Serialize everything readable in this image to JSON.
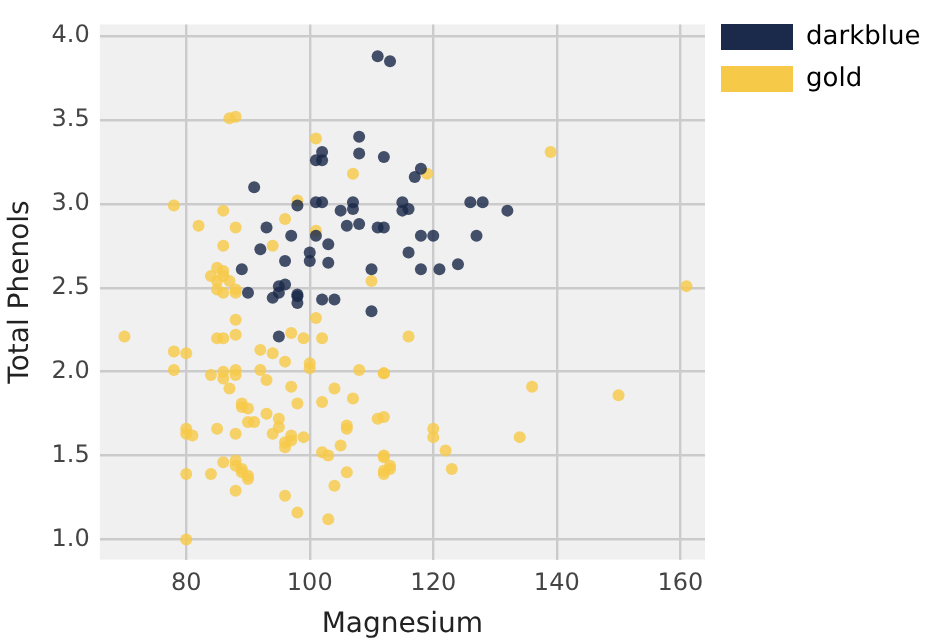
{
  "chart_data": {
    "type": "scatter",
    "xlabel": "Magnesium",
    "ylabel": "Total Phenols",
    "xlim": [
      66,
      164
    ],
    "ylim": [
      0.88,
      4.07
    ],
    "xticks": [
      80,
      100,
      120,
      140,
      160
    ],
    "yticks": [
      {
        "value": 1,
        "label": "1.0"
      },
      1.5,
      {
        "value": 2,
        "label": "2.0"
      },
      2.5,
      {
        "value": 3,
        "label": "3.0"
      },
      3.5,
      {
        "value": 4,
        "label": "4.0"
      }
    ],
    "grid": true,
    "legend": "top right",
    "marker": "circle",
    "series": [
      {
        "name": "darkblue",
        "color": "#1b2a4a",
        "x": [
          111,
          113,
          108,
          108,
          112,
          102,
          101,
          102,
          91,
          98,
          101,
          102,
          107,
          107,
          105,
          93,
          106,
          108,
          111,
          112,
          97,
          101,
          92,
          96,
          103,
          100,
          100,
          103,
          89,
          110,
          96,
          95,
          94,
          90,
          98,
          98,
          102,
          104,
          110,
          118,
          117,
          115,
          116,
          115,
          126,
          128,
          132,
          118,
          120,
          127,
          116,
          118,
          121,
          124,
          95,
          95,
          98
        ],
        "values": [
          3.88,
          3.85,
          3.4,
          3.3,
          3.28,
          3.31,
          3.26,
          3.26,
          3.1,
          2.99,
          3.01,
          3.01,
          3.01,
          2.97,
          2.96,
          2.86,
          2.87,
          2.88,
          2.86,
          2.86,
          2.81,
          2.81,
          2.73,
          2.66,
          2.76,
          2.71,
          2.66,
          2.65,
          2.61,
          2.61,
          2.52,
          2.51,
          2.44,
          2.47,
          2.45,
          2.41,
          2.43,
          2.43,
          2.36,
          3.21,
          3.16,
          3.01,
          2.97,
          2.96,
          3.01,
          3.01,
          2.96,
          2.81,
          2.81,
          2.81,
          2.71,
          2.61,
          2.61,
          2.64,
          2.21,
          2.47,
          2.46
        ]
      },
      {
        "name": "gold",
        "color": "#f7c948",
        "x": [
          87,
          88,
          101,
          107,
          78,
          86,
          82,
          88,
          96,
          98,
          86,
          94,
          85,
          86,
          84,
          86,
          85,
          87,
          85,
          86,
          88,
          110,
          101,
          139,
          119,
          161,
          70,
          78,
          80,
          78,
          85,
          86,
          88,
          88,
          88,
          92,
          94,
          97,
          99,
          102,
          101,
          96,
          100,
          100,
          84,
          86,
          88,
          86,
          87,
          88,
          92,
          93,
          97,
          108,
          112,
          104,
          102,
          107,
          89,
          89,
          90,
          93,
          95,
          98,
          90,
          91,
          80,
          80,
          81,
          85,
          88,
          94,
          97,
          95,
          106,
          106,
          96,
          96,
          97,
          99,
          102,
          103,
          105,
          86,
          88,
          88,
          89,
          90,
          88,
          84,
          80,
          89,
          90,
          96,
          98,
          106,
          104,
          103,
          112,
          112,
          113,
          80,
          116,
          112,
          111,
          112,
          120,
          120,
          122,
          123,
          112,
          112,
          113,
          134,
          136,
          150
        ],
        "values": [
          3.51,
          3.52,
          3.39,
          3.18,
          2.99,
          2.96,
          2.87,
          2.86,
          2.91,
          3.02,
          2.75,
          2.75,
          2.62,
          2.6,
          2.57,
          2.57,
          2.54,
          2.54,
          2.49,
          2.47,
          2.49,
          2.54,
          2.84,
          3.31,
          3.18,
          2.51,
          2.21,
          2.12,
          2.11,
          2.01,
          2.2,
          2.2,
          2.22,
          2.31,
          2.47,
          2.13,
          2.11,
          2.23,
          2.2,
          2.2,
          2.32,
          2.06,
          2.02,
          2.05,
          1.98,
          2.0,
          2.01,
          1.96,
          1.9,
          1.98,
          2.01,
          1.95,
          1.91,
          2.01,
          1.99,
          1.9,
          1.82,
          1.84,
          1.81,
          1.79,
          1.78,
          1.75,
          1.72,
          1.81,
          1.7,
          1.7,
          1.66,
          1.63,
          1.62,
          1.66,
          1.63,
          1.63,
          1.62,
          1.67,
          1.68,
          1.66,
          1.55,
          1.58,
          1.59,
          1.61,
          1.52,
          1.5,
          1.56,
          1.46,
          1.47,
          1.44,
          1.42,
          1.36,
          1.29,
          1.39,
          1.39,
          1.4,
          1.38,
          1.26,
          1.16,
          1.4,
          1.32,
          1.12,
          1.49,
          1.41,
          1.44,
          1.0,
          2.21,
          1.99,
          1.72,
          1.73,
          1.66,
          1.61,
          1.53,
          1.42,
          1.5,
          1.39,
          1.42,
          1.61,
          1.91,
          1.86
        ]
      }
    ]
  }
}
